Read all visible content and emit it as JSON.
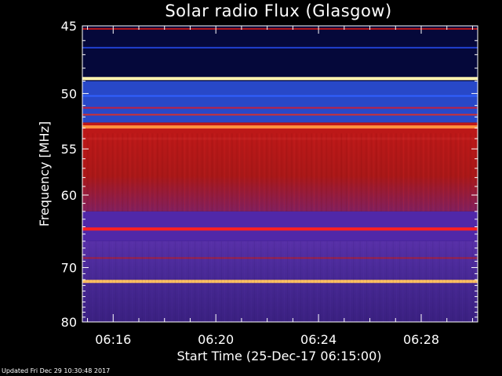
{
  "chart_data": {
    "type": "heatmap",
    "title": "Solar radio Flux (Glasgow)",
    "xlabel": "Start Time (25-Dec-17 06:15:00)",
    "ylabel": "Frequency [MHz]",
    "x_ticks": [
      "06:16",
      "06:20",
      "06:24",
      "06:28"
    ],
    "x_tick_minutes": [
      16,
      20,
      24,
      28
    ],
    "x_range_minutes": [
      14.8,
      30.2
    ],
    "y_ticks": [
      45,
      50,
      55,
      60,
      70,
      80
    ],
    "ylim": [
      45,
      80
    ],
    "y_scale": "reciprocal",
    "colormap": [
      "#00003c",
      "#2020d0",
      "#8030b0",
      "#d01010",
      "#ff6020",
      "#ffffa0"
    ],
    "background_bands": [
      {
        "freq": [
          45,
          49
        ],
        "color": "#05083a"
      },
      {
        "freq": [
          49,
          52.5
        ],
        "color": "#2848c8"
      },
      {
        "freq": [
          52.5,
          62
        ],
        "color": "#b81818"
      },
      {
        "freq": [
          62,
          66
        ],
        "color": "#5028a8"
      },
      {
        "freq": [
          66,
          80
        ],
        "color": "#4a2890"
      }
    ],
    "emission_lines": [
      {
        "freq": 45.2,
        "color": "#c01818",
        "width": 2
      },
      {
        "freq": 46.5,
        "color": "#2040d0",
        "width": 2
      },
      {
        "freq": 48.8,
        "color": "#fff4b0",
        "width": 4
      },
      {
        "freq": 50.2,
        "color": "#3060ff",
        "width": 2
      },
      {
        "freq": 51.2,
        "color": "#c02040",
        "width": 2
      },
      {
        "freq": 51.8,
        "color": "#d03030",
        "width": 2
      },
      {
        "freq": 52.9,
        "color": "#ff9040",
        "width": 4
      },
      {
        "freq": 54.0,
        "color": "#c02020",
        "width": 3
      },
      {
        "freq": 64.3,
        "color": "#ff2020",
        "width": 4
      },
      {
        "freq": 68.5,
        "color": "#a02040",
        "width": 2
      },
      {
        "freq": 72.3,
        "color": "#ffc060",
        "width": 4
      }
    ]
  },
  "footer": {
    "updated": "Updated Fri Dec 29 10:30:48 2017"
  }
}
